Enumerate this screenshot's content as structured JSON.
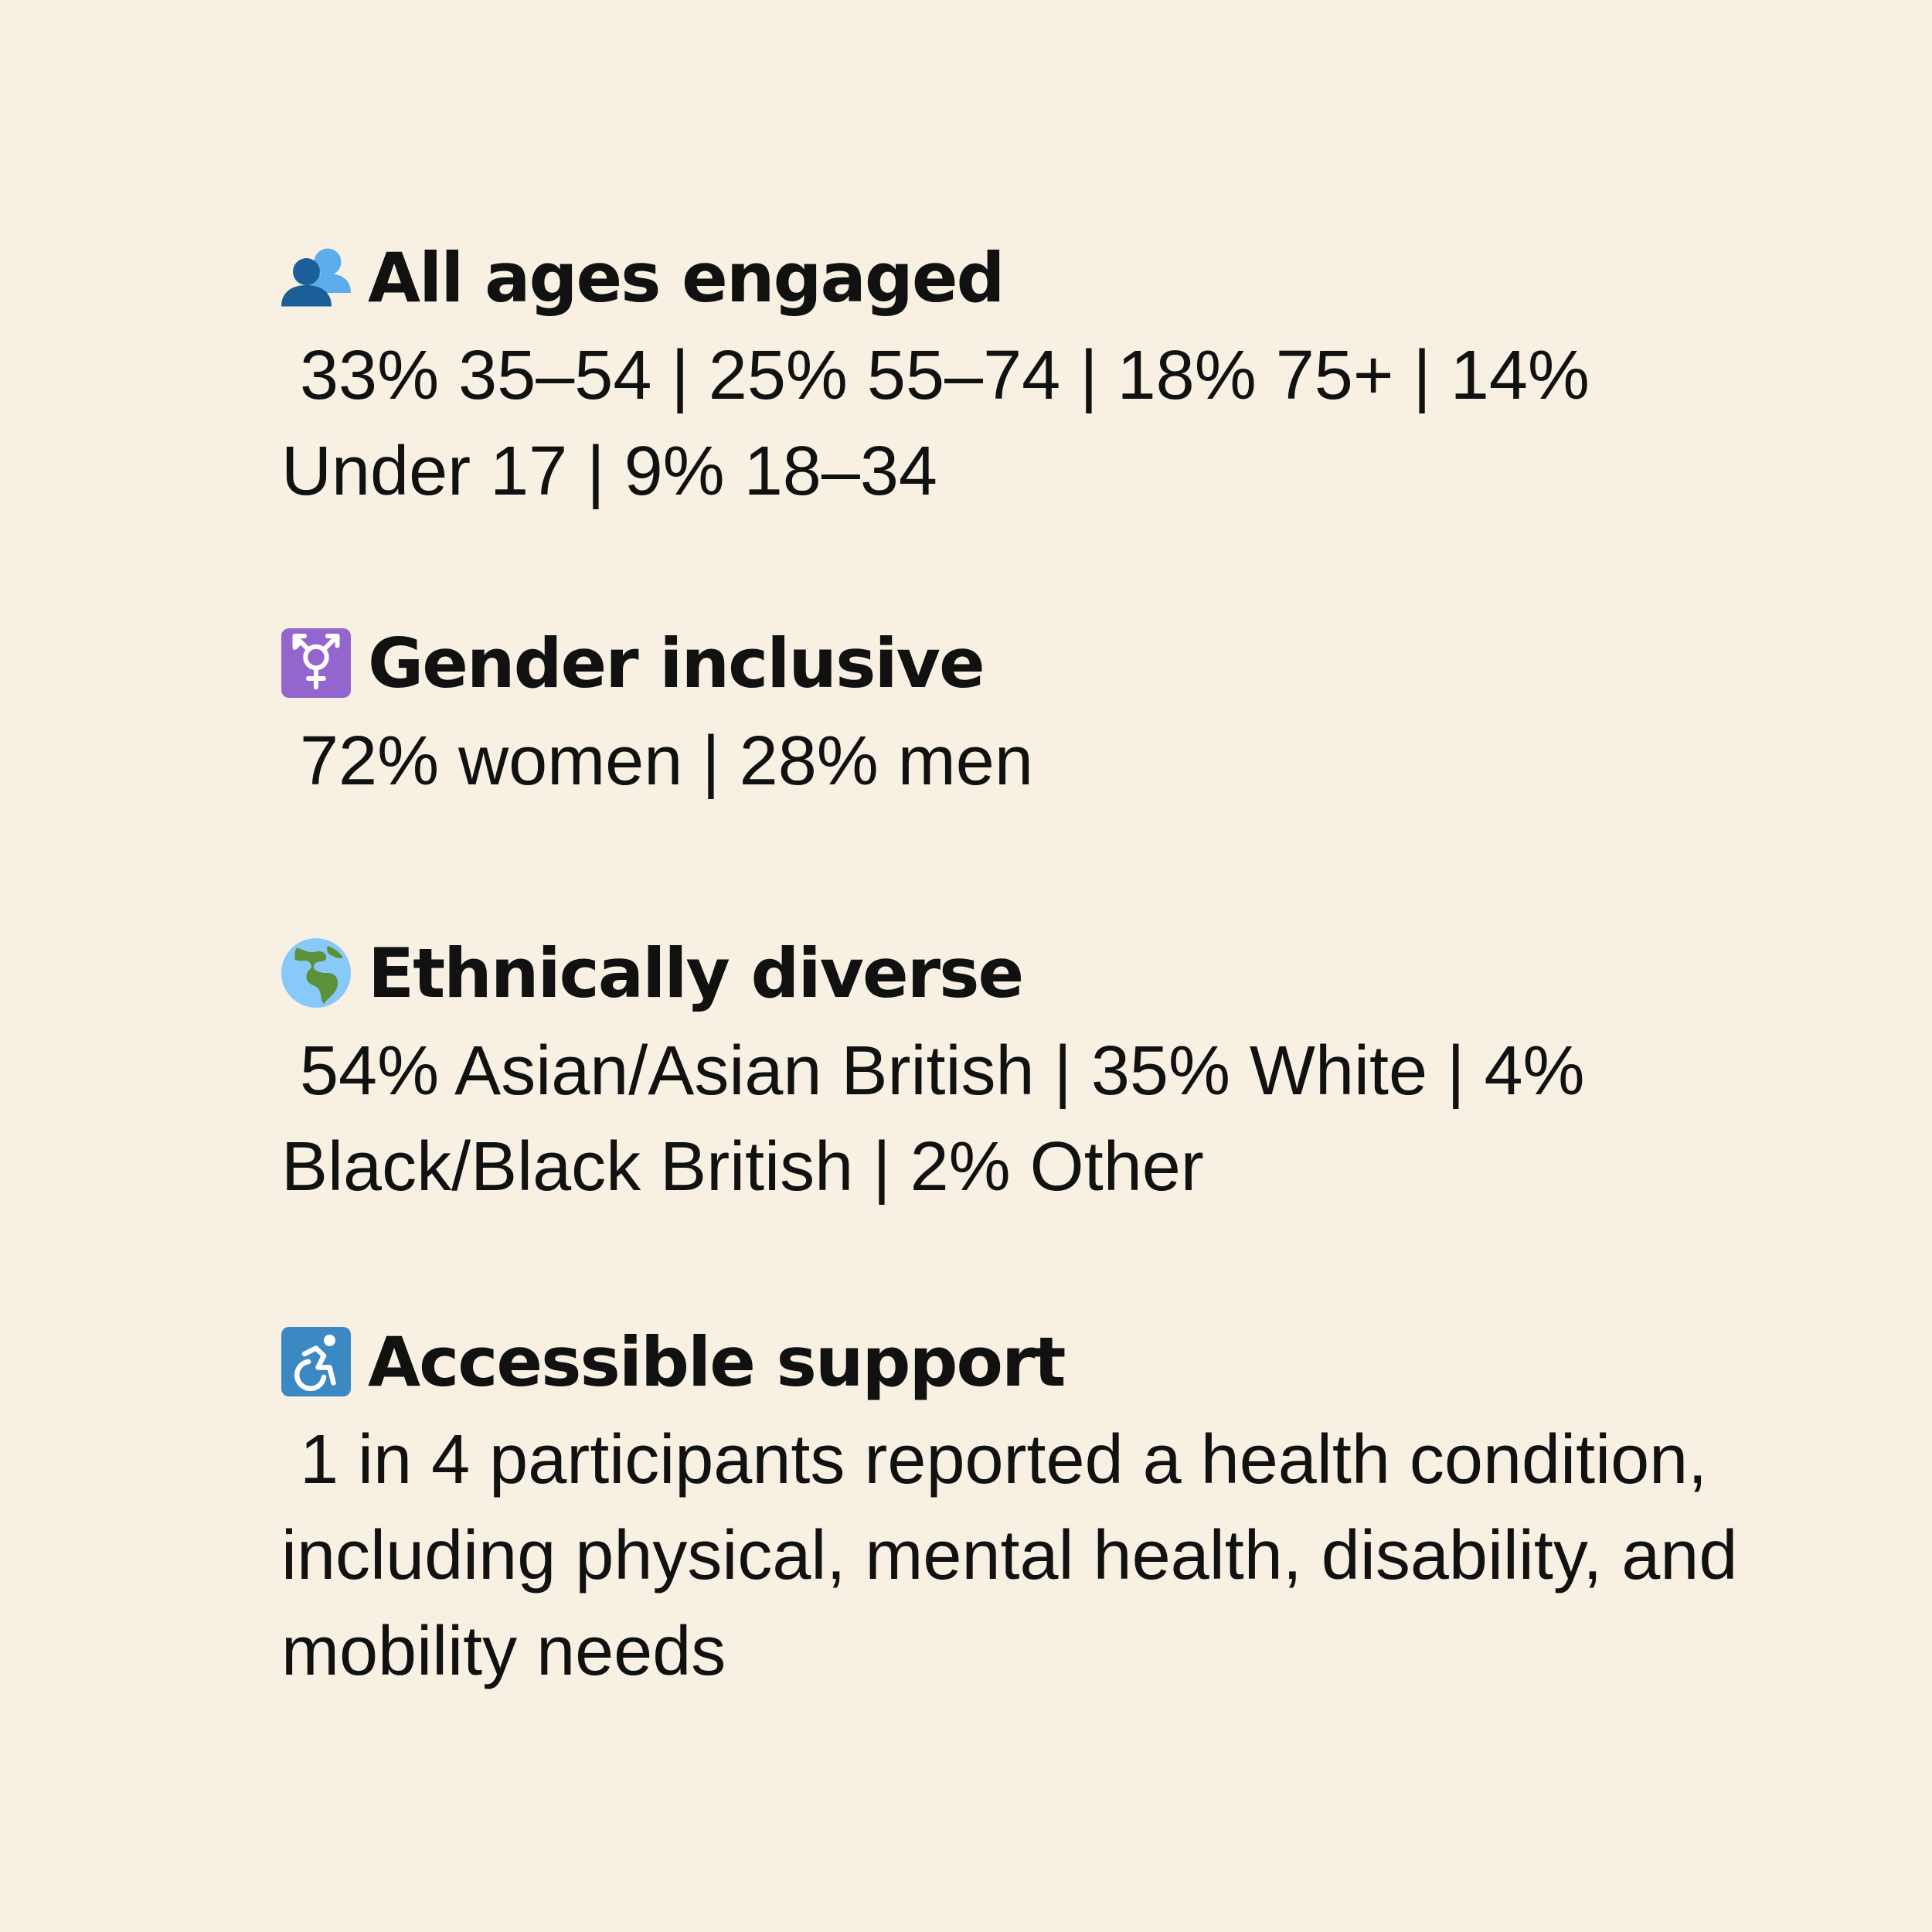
{
  "sections": [
    {
      "heading": "All ages engaged",
      "body": [
        "33% 35–54 | 25% 55–74 | 18% 75+ | 14%",
        "Under 17 | 9% 18–34"
      ]
    },
    {
      "heading": "Gender inclusive",
      "body": [
        "72% women | 28% men"
      ]
    },
    {
      "heading": "Ethnically diverse",
      "body": [
        "54% Asian/Asian British | 35% White | 4%",
        "Black/Black British | 2% Other"
      ]
    },
    {
      "heading": "Accessible support",
      "body": [
        "1 in 4 participants reported a health condition,",
        "including physical, mental health, disability, and",
        "mobility needs"
      ]
    }
  ]
}
